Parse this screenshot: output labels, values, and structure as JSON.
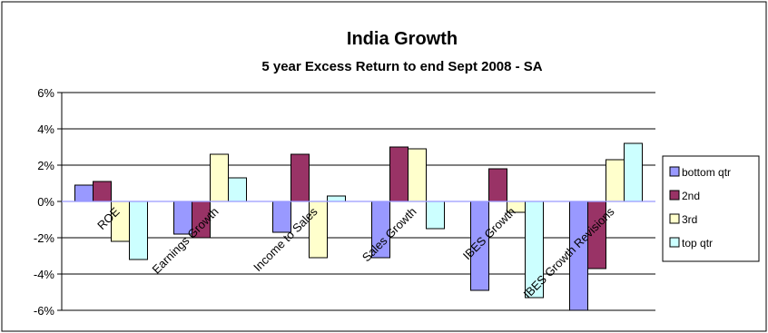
{
  "chart_data": {
    "type": "bar",
    "title": "India Growth",
    "subtitle": "5 year Excess Return to end Sept 2008 - SA",
    "categories": [
      "ROE",
      "Earnings Growth",
      "Income to Sales",
      "Sales Growth",
      "IBES Growth",
      "IBES Growth Revisions"
    ],
    "series": [
      {
        "name": "bottom qtr",
        "color": "#9999ff",
        "values": [
          0.9,
          -1.8,
          -1.7,
          -3.1,
          -4.9,
          -6.2
        ]
      },
      {
        "name": "2nd",
        "color": "#993366",
        "values": [
          1.1,
          -2.0,
          2.6,
          3.0,
          1.8,
          -3.7
        ]
      },
      {
        "name": "3rd",
        "color": "#ffffcc",
        "values": [
          -2.2,
          2.6,
          -3.1,
          2.9,
          -0.6,
          2.3
        ]
      },
      {
        "name": "top qtr",
        "color": "#ccffff",
        "values": [
          -3.2,
          1.3,
          0.3,
          -1.5,
          -5.3,
          3.2
        ]
      }
    ],
    "ylim": [
      -6,
      6
    ],
    "yticks": [
      "6%",
      "4%",
      "2%",
      "0%",
      "-2%",
      "-4%",
      "-6%"
    ],
    "ytick_values": [
      6,
      4,
      2,
      0,
      -2,
      -4,
      -6
    ],
    "grid": true,
    "legend": "right",
    "axis_line_color": "#9999ff"
  }
}
